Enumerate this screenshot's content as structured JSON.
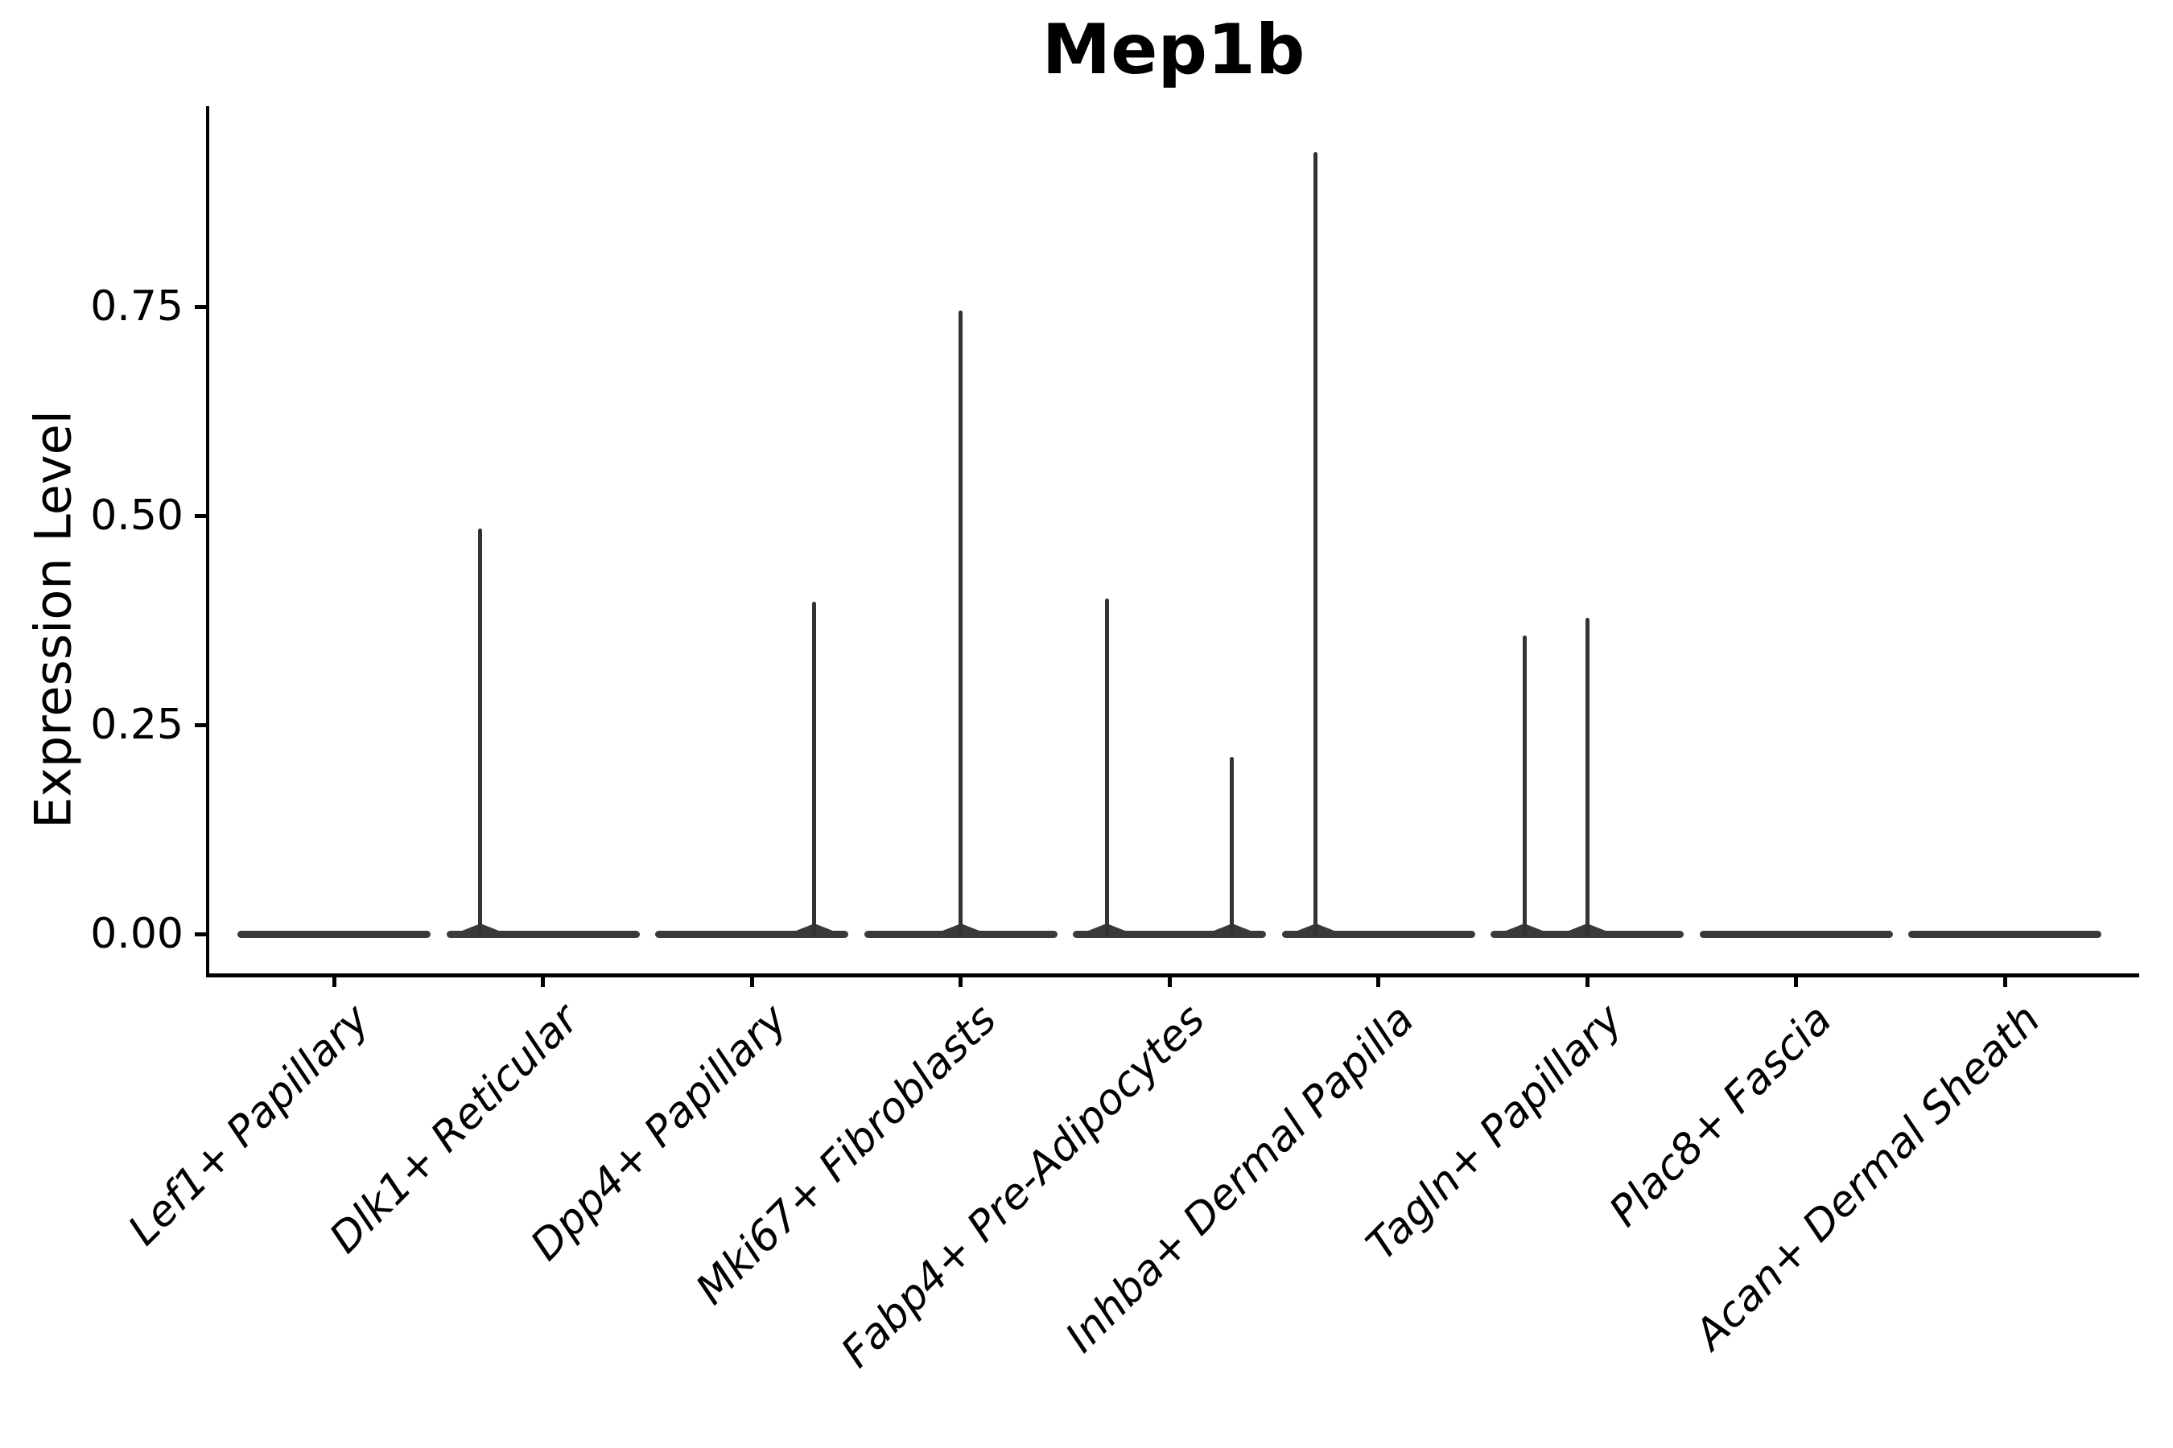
{
  "chart_data": {
    "type": "violin",
    "title": "Mep1b",
    "xlabel": "",
    "ylabel": "Expression Level",
    "ylim": [
      0,
      0.99
    ],
    "yticks": [
      0,
      0.25,
      0.5,
      0.75
    ],
    "ytick_labels": [
      "0.00",
      "0.25",
      "0.50",
      "0.75"
    ],
    "grid": false,
    "legend_position": "none",
    "categories": [
      "Lef1+ Papillary",
      "Dlk1+ Reticular",
      "Dpp4+ Papillary",
      "Mki67+ Fibroblasts",
      "Fabp4+ Pre-Adipocytes",
      "Inhba+ Dermal Papilla",
      "Tagln+ Papillary",
      "Plac8+ Fascia",
      "Acan+ Dermal Sheath"
    ],
    "series": [
      {
        "category": "Lef1+ Papillary",
        "zero_density_body": true,
        "expression_spikes": []
      },
      {
        "category": "Dlk1+ Reticular",
        "zero_density_body": true,
        "expression_spikes": [
          {
            "offset": -0.3,
            "value": 0.485
          }
        ]
      },
      {
        "category": "Dpp4+ Papillary",
        "zero_density_body": true,
        "expression_spikes": [
          {
            "offset": 0.3,
            "value": 0.397
          }
        ]
      },
      {
        "category": "Mki67+ Fibroblasts",
        "zero_density_body": true,
        "expression_spikes": [
          {
            "offset": 0.0,
            "value": 0.745
          }
        ]
      },
      {
        "category": "Fabp4+ Pre-Adipocytes",
        "zero_density_body": true,
        "expression_spikes": [
          {
            "offset": -0.3,
            "value": 0.401
          },
          {
            "offset": 0.3,
            "value": 0.212
          }
        ]
      },
      {
        "category": "Inhba+ Dermal Papilla",
        "zero_density_body": true,
        "expression_spikes": [
          {
            "offset": -0.3,
            "value": 0.935
          }
        ]
      },
      {
        "category": "Tagln+ Papillary",
        "zero_density_body": true,
        "expression_spikes": [
          {
            "offset": -0.3,
            "value": 0.357
          },
          {
            "offset": 0.0,
            "value": 0.378
          }
        ]
      },
      {
        "category": "Plac8+ Fascia",
        "zero_density_body": true,
        "expression_spikes": []
      },
      {
        "category": "Acan+ Dermal Sheath",
        "zero_density_body": true,
        "expression_spikes": []
      }
    ],
    "colors": {
      "violin_body": "#3a3a3a",
      "spike": "#333333",
      "axis": "#000000",
      "text": "#000000",
      "background": "#ffffff"
    }
  }
}
